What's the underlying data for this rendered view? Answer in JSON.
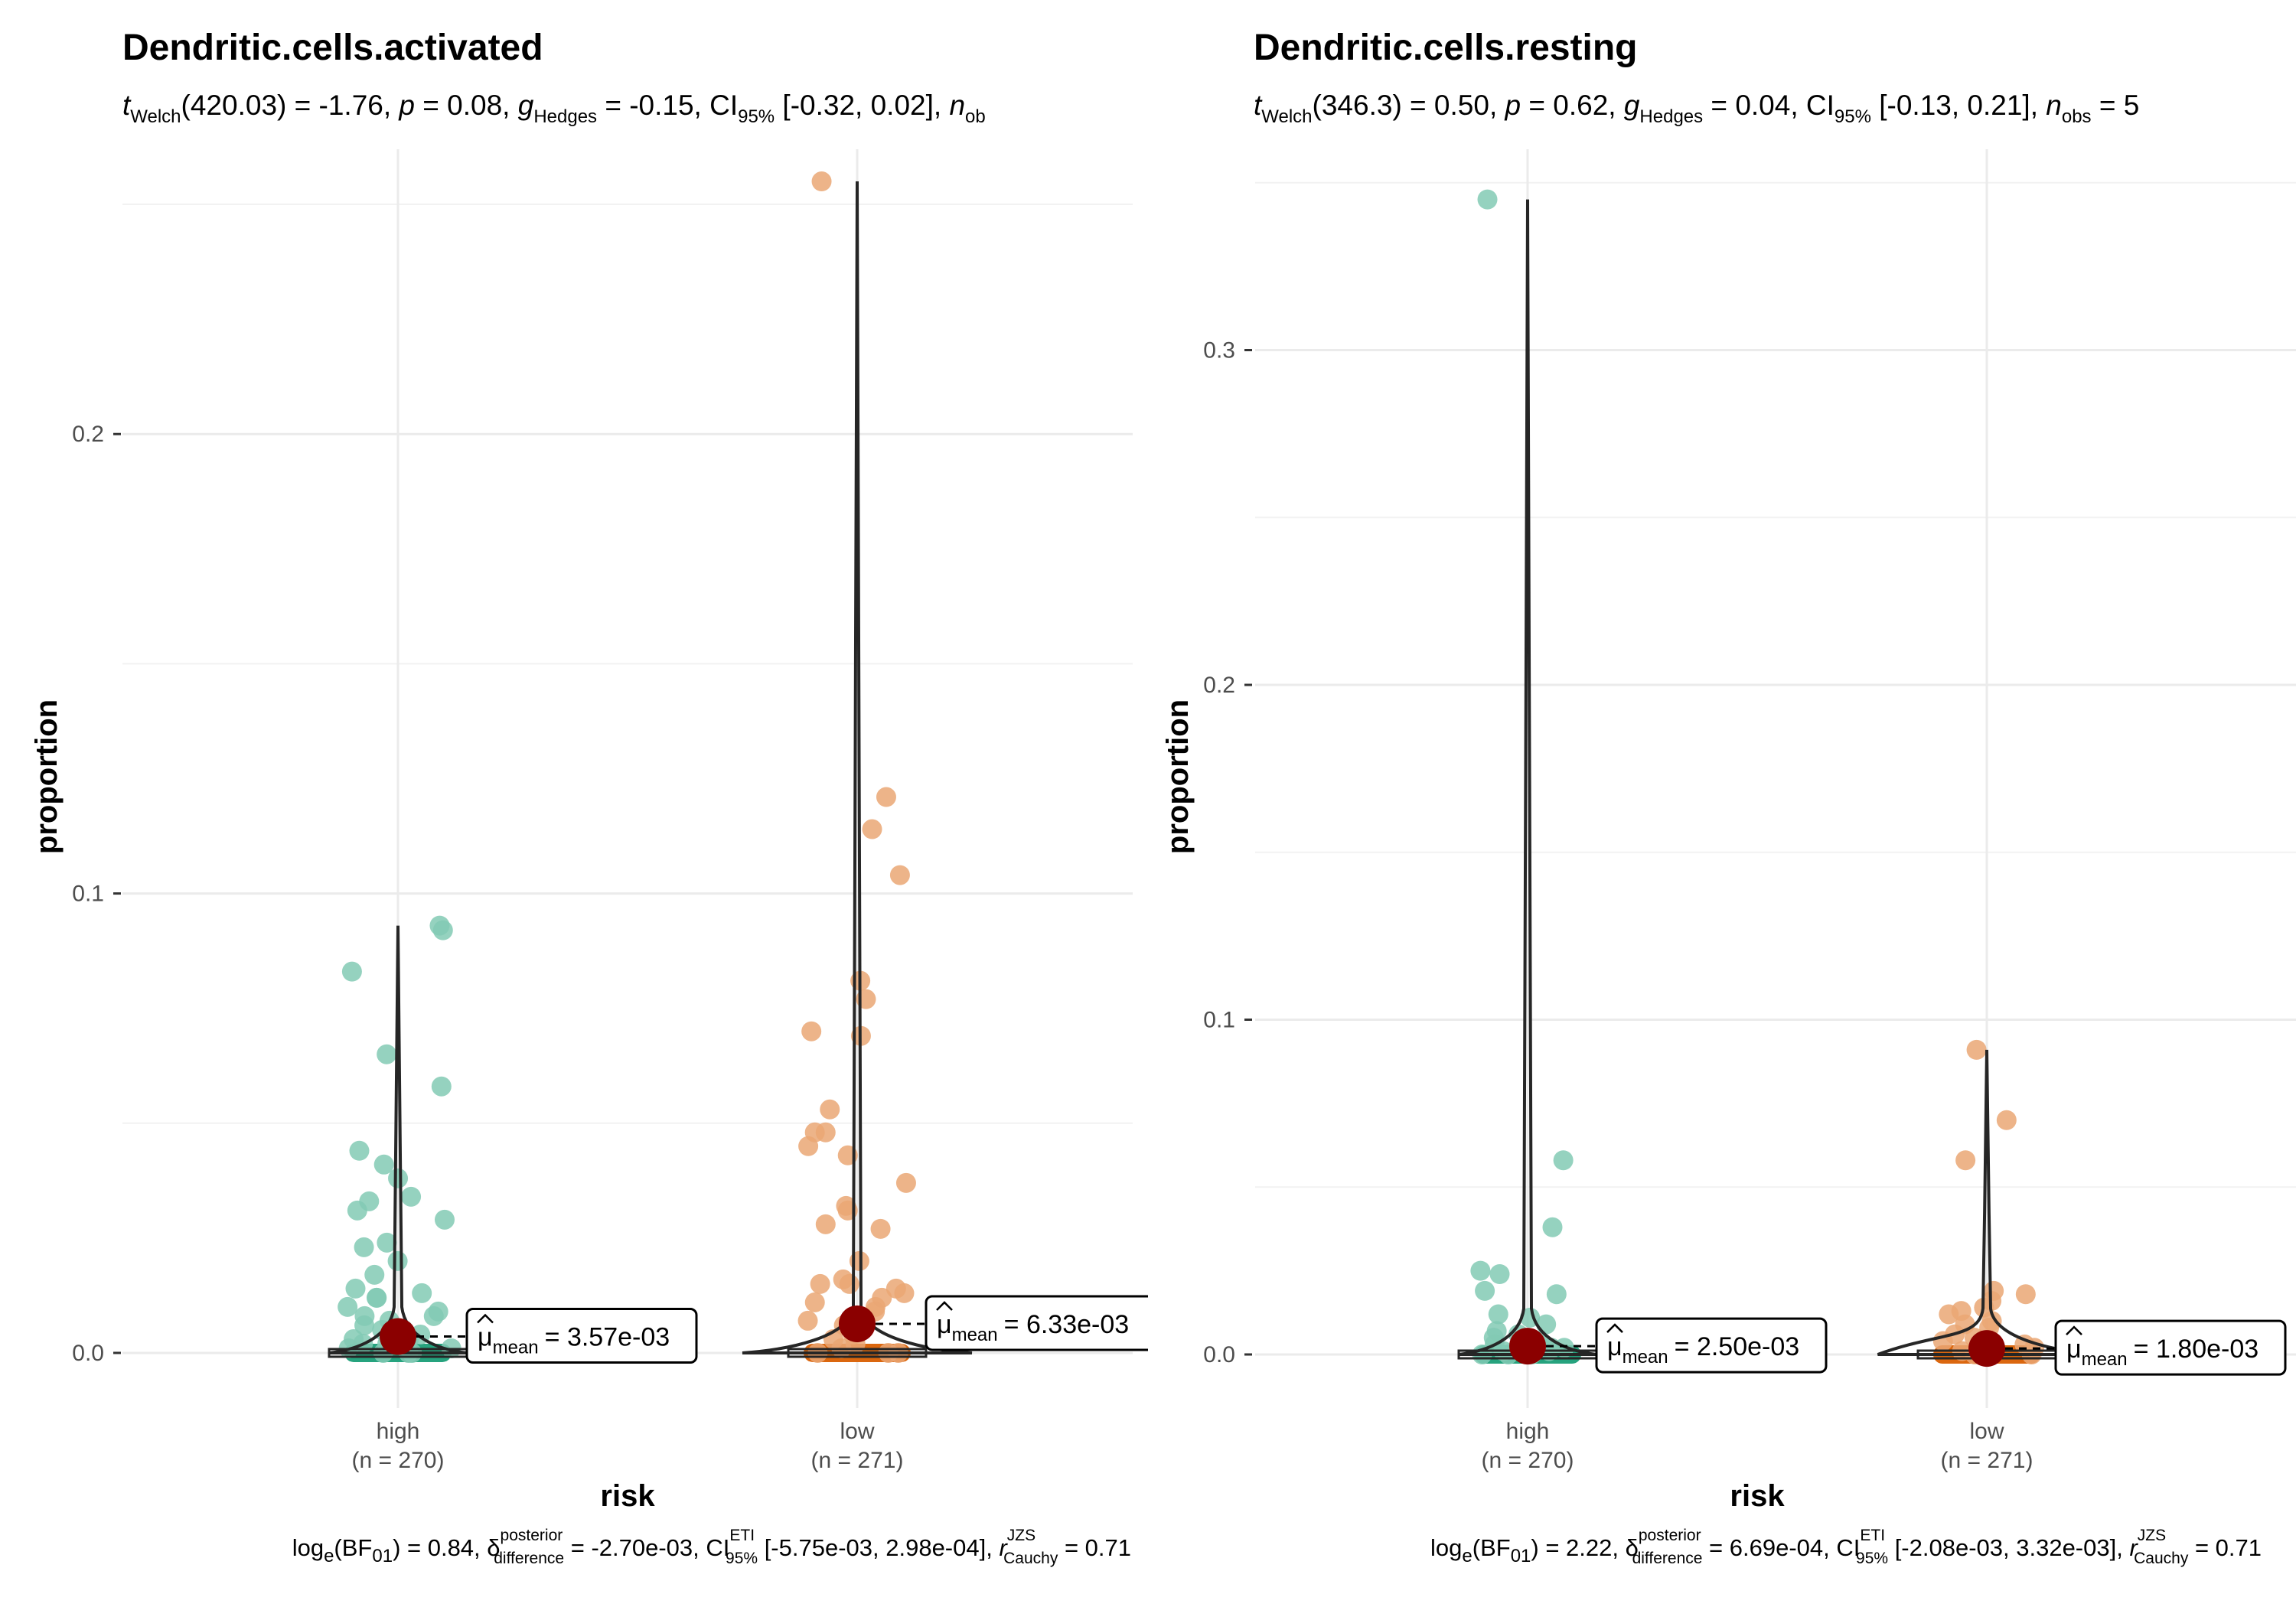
{
  "chart_data": [
    {
      "type": "violin",
      "title": "Dendritic.cells.activated",
      "subtitle": {
        "test_stat": "t",
        "test_sub": "Welch",
        "df": "(420.03) = -1.76, ",
        "p_sym": "p",
        "p_val": " = 0.08, ",
        "g_sym": "g",
        "g_sub": "Hedges",
        "g_val": " = -0.15, CI",
        "ci_sub": "95%",
        "ci_val": " [-0.32, 0.02], ",
        "n_sym": "n",
        "n_sub": "ob"
      },
      "xlabel": "risk",
      "ylabel": "proportion",
      "ylim": [
        -0.012,
        0.262
      ],
      "yticks": [
        0.0,
        0.1,
        0.2
      ],
      "ytick_labels": [
        "0.0",
        "0.1",
        "0.2"
      ],
      "grid": true,
      "groups": [
        {
          "name": "high",
          "n_label": "(n = 270)",
          "mean": 0.00357,
          "mean_label": "= 3.57e-03",
          "max": 0.093,
          "color": "#1b9e77",
          "points": [
            0.093,
            0.092,
            0.083,
            0.065,
            0.058,
            0.044,
            0.041,
            0.038,
            0.034,
            0.033,
            0.031,
            0.029,
            0.024,
            0.023,
            0.02,
            0.017,
            0.014,
            0.013,
            0.012,
            0.012,
            0.01,
            0.009,
            0.008,
            0.008,
            0.007,
            0.006,
            0.005,
            0.005,
            0.004,
            0.003,
            0.003,
            0.002,
            0.002,
            0.001,
            0.001,
            0.0,
            0.0,
            0.0
          ]
        },
        {
          "name": "low",
          "n_label": "(n = 271)",
          "mean": 0.00633,
          "mean_label": "= 6.33e-03",
          "max": 0.255,
          "color": "#d95f02",
          "points": [
            0.255,
            0.121,
            0.114,
            0.104,
            0.081,
            0.077,
            0.07,
            0.069,
            0.053,
            0.048,
            0.048,
            0.045,
            0.043,
            0.037,
            0.032,
            0.031,
            0.028,
            0.027,
            0.02,
            0.016,
            0.015,
            0.015,
            0.014,
            0.013,
            0.012,
            0.011,
            0.01,
            0.009,
            0.008,
            0.007,
            0.006,
            0.005,
            0.004,
            0.003,
            0.002,
            0.001,
            0.0,
            0.0,
            0.0
          ]
        }
      ],
      "caption": {
        "log": "log",
        "log_sub": "e",
        "bf": "(BF",
        "bf_sub": "01",
        "bf_val": ") = 0.84, ",
        "delta": "δ",
        "delta_sup": "posterior",
        "delta_sub": "difference",
        "delta_val": " = -2.70e-03, CI",
        "ci_sup": "ETI",
        "ci_sub": "95%",
        "ci_val": " [-5.75e-03, 2.98e-04], ",
        "r": "r",
        "r_sup": "JZS",
        "r_sub": "Cauchy",
        "r_val": " = 0.71"
      }
    },
    {
      "type": "violin",
      "title": "Dendritic.cells.resting",
      "subtitle": {
        "test_stat": "t",
        "test_sub": "Welch",
        "df": "(346.3) = 0.50, ",
        "p_sym": "p",
        "p_val": " = 0.62, ",
        "g_sym": "g",
        "g_sub": "Hedges",
        "g_val": " = 0.04, CI",
        "ci_sub": "95%",
        "ci_val": " [-0.13, 0.21], ",
        "n_sym": "n",
        "n_sub": "obs",
        "n_val": " = 5"
      },
      "xlabel": "risk",
      "ylabel": "proportion",
      "ylim": [
        -0.016,
        0.36
      ],
      "yticks": [
        0.0,
        0.1,
        0.2,
        0.3
      ],
      "ytick_labels": [
        "0.0",
        "0.1",
        "0.2",
        "0.3"
      ],
      "grid": true,
      "groups": [
        {
          "name": "high",
          "n_label": "(n = 270)",
          "mean": 0.0025,
          "mean_label": "= 2.50e-03",
          "max": 0.345,
          "color": "#1b9e77",
          "points": [
            0.345,
            0.058,
            0.038,
            0.025,
            0.024,
            0.019,
            0.018,
            0.012,
            0.011,
            0.009,
            0.007,
            0.006,
            0.005,
            0.004,
            0.003,
            0.002,
            0.002,
            0.001,
            0.001,
            0.0,
            0.0,
            0.0
          ]
        },
        {
          "name": "low",
          "n_label": "(n = 271)",
          "mean": 0.0018,
          "mean_label": "= 1.80e-03",
          "max": 0.091,
          "color": "#d95f02",
          "points": [
            0.091,
            0.07,
            0.058,
            0.019,
            0.018,
            0.016,
            0.014,
            0.013,
            0.012,
            0.01,
            0.009,
            0.008,
            0.006,
            0.005,
            0.004,
            0.003,
            0.002,
            0.001,
            0.0,
            0.0,
            0.0
          ]
        }
      ],
      "caption": {
        "log": "log",
        "log_sub": "e",
        "bf": "(BF",
        "bf_sub": "01",
        "bf_val": ") = 2.22, ",
        "delta": "δ",
        "delta_sup": "posterior",
        "delta_sub": "difference",
        "delta_val": " = 6.69e-04, CI",
        "ci_sup": "ETI",
        "ci_sub": "95%",
        "ci_val": " [-2.08e-03, 3.32e-03], ",
        "r": "r",
        "r_sup": "JZS",
        "r_sub": "Cauchy",
        "r_val": " = 0.71"
      }
    }
  ],
  "mean_symbol": "μ",
  "mean_sub": "mean"
}
